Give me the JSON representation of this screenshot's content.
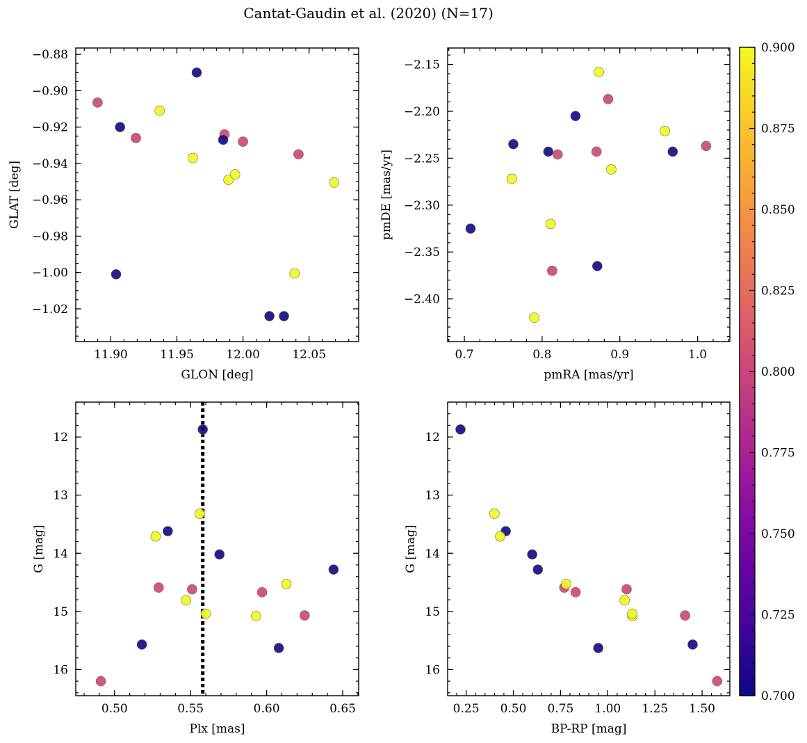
{
  "chart_data": {
    "title": "Cantat-Gaudin et al. (2020) (N=17)",
    "colorbar": {
      "colormap": "plasma",
      "range": [
        0.7,
        0.9
      ],
      "ticks": [
        "0.700",
        "0.725",
        "0.750",
        "0.775",
        "0.800",
        "0.825",
        "0.850",
        "0.875",
        "0.900"
      ]
    },
    "points": [
      {
        "glon": 11.89,
        "glat": -0.9065,
        "pmra": 0.885,
        "pmde": -2.187,
        "plx": 0.625,
        "g": 15.07,
        "bprp": 1.41,
        "c": 0.8
      },
      {
        "glon": 11.907,
        "glat": -0.92,
        "pmra": 0.808,
        "pmde": -2.243,
        "plx": 0.535,
        "g": 13.62,
        "bprp": 0.46,
        "c": 0.7
      },
      {
        "glon": 11.919,
        "glat": -0.926,
        "pmra": 0.82,
        "pmde": -2.246,
        "plx": 0.597,
        "g": 14.67,
        "bprp": 0.83,
        "c": 0.8
      },
      {
        "glon": 11.937,
        "glat": -0.911,
        "pmra": 0.873,
        "pmde": -2.158,
        "plx": 0.547,
        "g": 14.81,
        "bprp": 1.09,
        "c": 0.9
      },
      {
        "glon": 11.965,
        "glat": -0.89,
        "pmra": 0.843,
        "pmde": -2.205,
        "plx": 0.569,
        "g": 14.02,
        "bprp": 0.6,
        "c": 0.7
      },
      {
        "glon": 11.962,
        "glat": -0.937,
        "pmra": 0.761,
        "pmde": -2.272,
        "plx": 0.593,
        "g": 15.08,
        "bprp": 1.13,
        "c": 0.9
      },
      {
        "glon": 11.986,
        "glat": -0.924,
        "pmra": 0.813,
        "pmde": -2.37,
        "plx": 0.529,
        "g": 14.59,
        "bprp": 0.77,
        "c": 0.8
      },
      {
        "glon": 11.985,
        "glat": -0.927,
        "pmra": 0.763,
        "pmde": -2.235,
        "plx": 0.644,
        "g": 14.28,
        "bprp": 0.63,
        "c": 0.7
      },
      {
        "glon": 11.989,
        "glat": -0.949,
        "pmra": 0.811,
        "pmde": -2.32,
        "plx": 0.527,
        "g": 13.71,
        "bprp": 0.43,
        "c": 0.9
      },
      {
        "glon": 11.994,
        "glat": -0.946,
        "pmra": 0.889,
        "pmde": -2.262,
        "plx": 0.613,
        "g": 14.53,
        "bprp": 0.78,
        "c": 0.9
      },
      {
        "glon": 12.0,
        "glat": -0.928,
        "pmra": 0.87,
        "pmde": -2.243,
        "plx": 0.551,
        "g": 14.62,
        "bprp": 1.1,
        "c": 0.8
      },
      {
        "glon": 12.042,
        "glat": -0.935,
        "pmra": 1.011,
        "pmde": -2.237,
        "plx": 0.491,
        "g": 16.2,
        "bprp": 1.58,
        "c": 0.8
      },
      {
        "glon": 12.069,
        "glat": -0.9505,
        "pmra": 0.958,
        "pmde": -2.221,
        "plx": 0.556,
        "g": 13.32,
        "bprp": 0.4,
        "c": 0.9
      },
      {
        "glon": 12.039,
        "glat": -1.0005,
        "pmra": 0.79,
        "pmde": -2.42,
        "plx": 0.56,
        "g": 15.04,
        "bprp": 1.13,
        "c": 0.9
      },
      {
        "glon": 11.904,
        "glat": -1.001,
        "pmra": 0.708,
        "pmde": -2.325,
        "plx": 0.518,
        "g": 15.57,
        "bprp": 1.45,
        "c": 0.7
      },
      {
        "glon": 12.02,
        "glat": -1.024,
        "pmra": 0.968,
        "pmde": -2.243,
        "plx": 0.558,
        "g": 11.87,
        "bprp": 0.22,
        "c": 0.7
      },
      {
        "glon": 12.031,
        "glat": -1.024,
        "pmra": 0.871,
        "pmde": -2.365,
        "plx": 0.608,
        "g": 15.63,
        "bprp": 0.95,
        "c": 0.7
      }
    ],
    "panels": [
      {
        "name": "glon-glat",
        "type": "scatter",
        "xkey": "glon",
        "ykey": "glat",
        "xlabel": "GLON [deg]",
        "ylabel": "GLAT [deg]",
        "xlim": [
          11.8735,
          12.0875
        ],
        "ylim": [
          -1.038,
          -0.8765
        ],
        "yinverted": false,
        "xticks": [
          11.9,
          11.95,
          12.0,
          12.05
        ],
        "xticklabels": [
          "11.90",
          "11.95",
          "12.00",
          "12.05"
        ],
        "yticks": [
          -0.88,
          -0.9,
          -0.92,
          -0.94,
          -0.96,
          -0.98,
          -1.0,
          -1.02
        ],
        "yticklabels": [
          "−0.88",
          "−0.90",
          "−0.92",
          "−0.94",
          "−0.96",
          "−0.98",
          "−1.00",
          "−1.02"
        ],
        "xminor": 0.01,
        "yminor": 0.005
      },
      {
        "name": "pmra-pmde",
        "type": "scatter",
        "xkey": "pmra",
        "ykey": "pmde",
        "xlabel": "pmRA [mas/yr]",
        "ylabel": "pmDE [mas/yr]",
        "xlim": [
          0.6785,
          1.0415
        ],
        "ylim": [
          -2.4455,
          -2.1325
        ],
        "yinverted": false,
        "xticks": [
          0.7,
          0.8,
          0.9,
          1.0
        ],
        "xticklabels": [
          "0.7",
          "0.8",
          "0.9",
          "1.0"
        ],
        "yticks": [
          -2.15,
          -2.2,
          -2.25,
          -2.3,
          -2.35,
          -2.4
        ],
        "yticklabels": [
          "−2.15",
          "−2.20",
          "−2.25",
          "−2.30",
          "−2.35",
          "−2.40"
        ],
        "xminor": 0.02,
        "yminor": 0.01
      },
      {
        "name": "plx-g",
        "type": "scatter",
        "xkey": "plx",
        "ykey": "g",
        "xlabel": "Plx [mas]",
        "ylabel": "G [mag]",
        "xlim": [
          0.4745,
          0.6605
        ],
        "ylim": [
          11.4,
          16.45
        ],
        "yinverted": true,
        "xticks": [
          0.5,
          0.55,
          0.6,
          0.65
        ],
        "xticklabels": [
          "0.50",
          "0.55",
          "0.60",
          "0.65"
        ],
        "yticks": [
          12,
          13,
          14,
          15,
          16
        ],
        "yticklabels": [
          "12",
          "13",
          "14",
          "15",
          "16"
        ],
        "xminor": 0.01,
        "yminor": 0.2,
        "vline": 0.558
      },
      {
        "name": "bprp-g",
        "type": "scatter",
        "xkey": "bprp",
        "ykey": "g",
        "xlabel": "BP-RP [mag]",
        "ylabel": "G [mag]",
        "xlim": [
          0.152,
          1.647
        ],
        "ylim": [
          11.4,
          16.45
        ],
        "yinverted": true,
        "xticks": [
          0.25,
          0.5,
          0.75,
          1.0,
          1.25,
          1.5
        ],
        "xticklabels": [
          "0.25",
          "0.50",
          "0.75",
          "1.00",
          "1.25",
          "1.50"
        ],
        "yticks": [
          12,
          13,
          14,
          15,
          16
        ],
        "yticklabels": [
          "12",
          "13",
          "14",
          "15",
          "16"
        ],
        "xminor": 0.05,
        "yminor": 0.2
      }
    ]
  }
}
